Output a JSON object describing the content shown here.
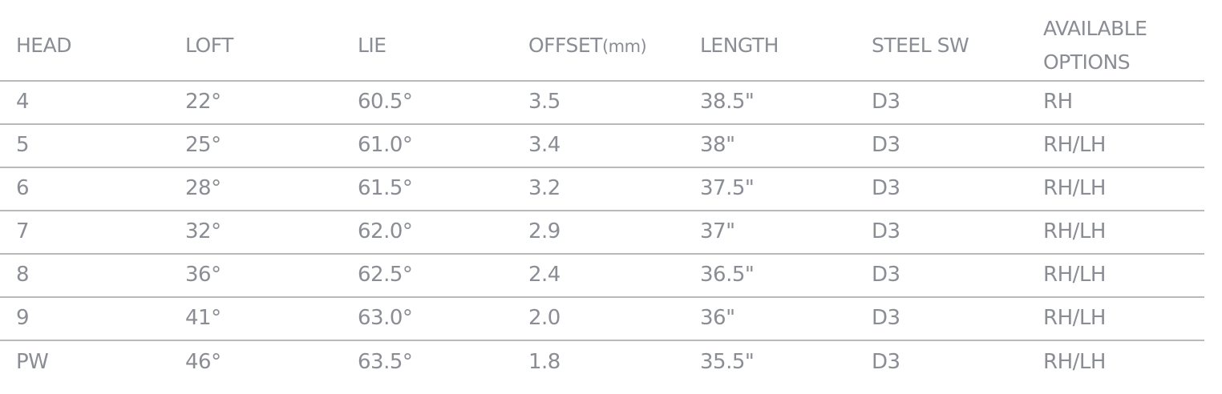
{
  "headers": {
    "head": "HEAD",
    "loft": "LOFT",
    "lie": "LIE",
    "offset": "OFFSET",
    "offset_unit": "(mm)",
    "length": "LENGTH",
    "steel_sw": "STEEL SW",
    "options": "AVAILABLE OPTIONS"
  },
  "rows": [
    [
      "4",
      "22°",
      "60.5°",
      "3.5",
      "38.5\"",
      "D3",
      "RH"
    ],
    [
      "5",
      "25°",
      "61.0°",
      "3.4",
      "38\"",
      "D3",
      "RH/LH"
    ],
    [
      "6",
      "28°",
      "61.5°",
      "3.2",
      "37.5\"",
      "D3",
      "RH/LH"
    ],
    [
      "7",
      "32°",
      "62.0°",
      "2.9",
      "37\"",
      "D3",
      "RH/LH"
    ],
    [
      "8",
      "36°",
      "62.5°",
      "2.4",
      "36.5\"",
      "D3",
      "RH/LH"
    ],
    [
      "9",
      "41°",
      "63.0°",
      "2.0",
      "36\"",
      "D3",
      "RH/LH"
    ],
    [
      "PW",
      "46°",
      "63.5°",
      "1.8",
      "35.5\"",
      "D3",
      "RH/LH"
    ]
  ],
  "colors": {
    "text": "#8a8d93",
    "rule": "#b7b9bd",
    "background": "#ffffff"
  }
}
